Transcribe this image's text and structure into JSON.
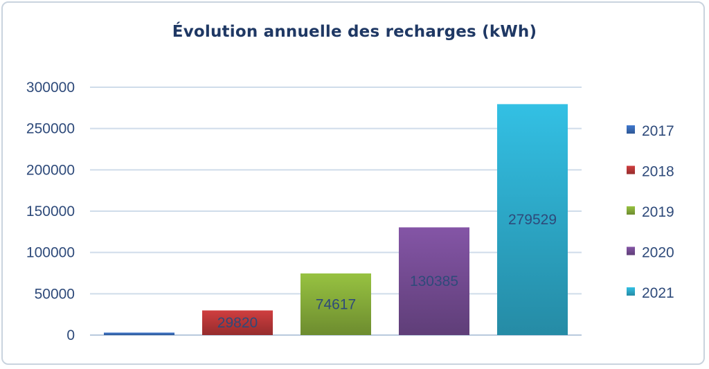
{
  "chart_data": {
    "type": "bar",
    "title": "Évolution annuelle des recharges (kWh)",
    "categories": [
      "2017",
      "2018",
      "2019",
      "2020",
      "2021"
    ],
    "values": [
      3000,
      29820,
      74617,
      130385,
      279529
    ],
    "data_labels": [
      "",
      "29820",
      "74617",
      "130385",
      "279529"
    ],
    "colors": [
      "#3b6fbf",
      "#c0393a",
      "#8cb43c",
      "#7a4f9a",
      "#2fb2d3"
    ],
    "xlabel": "",
    "ylabel": "",
    "ylim": [
      0,
      300000
    ],
    "yticks": [
      "0",
      "50000",
      "100000",
      "150000",
      "200000",
      "250000",
      "300000"
    ],
    "grid": true,
    "legend": {
      "position": "right",
      "entries": [
        "2017",
        "2018",
        "2019",
        "2020",
        "2021"
      ]
    }
  }
}
